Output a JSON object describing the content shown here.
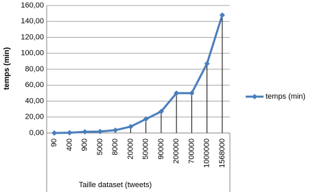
{
  "chart_data": {
    "type": "line",
    "y_label": "temps (min)",
    "x_label": "Taille dataset (tweets)",
    "categories": [
      "90",
      "400",
      "900",
      "5000",
      "8000",
      "20000",
      "50000",
      "90000",
      "200000",
      "700000",
      "1000000",
      "1568000"
    ],
    "series": [
      {
        "name": "temps (min)",
        "color": "#4a7ebb",
        "values": [
          0,
          0.3,
          1.5,
          1.8,
          3.5,
          8,
          17.5,
          27,
          50,
          50,
          87,
          148
        ]
      }
    ],
    "ylim": [
      0,
      160
    ],
    "yticks": [
      {
        "value": 0,
        "label": "0,00"
      },
      {
        "value": 20,
        "label": "20,00"
      },
      {
        "value": 40,
        "label": "40,00"
      },
      {
        "value": 60,
        "label": "60,00"
      },
      {
        "value": 80,
        "label": "80,00"
      },
      {
        "value": 100,
        "label": "100,00"
      },
      {
        "value": 120,
        "label": "120,00"
      },
      {
        "value": 140,
        "label": "140,00"
      },
      {
        "value": 160,
        "label": "160,00"
      }
    ],
    "grid": true,
    "legend": "right"
  }
}
